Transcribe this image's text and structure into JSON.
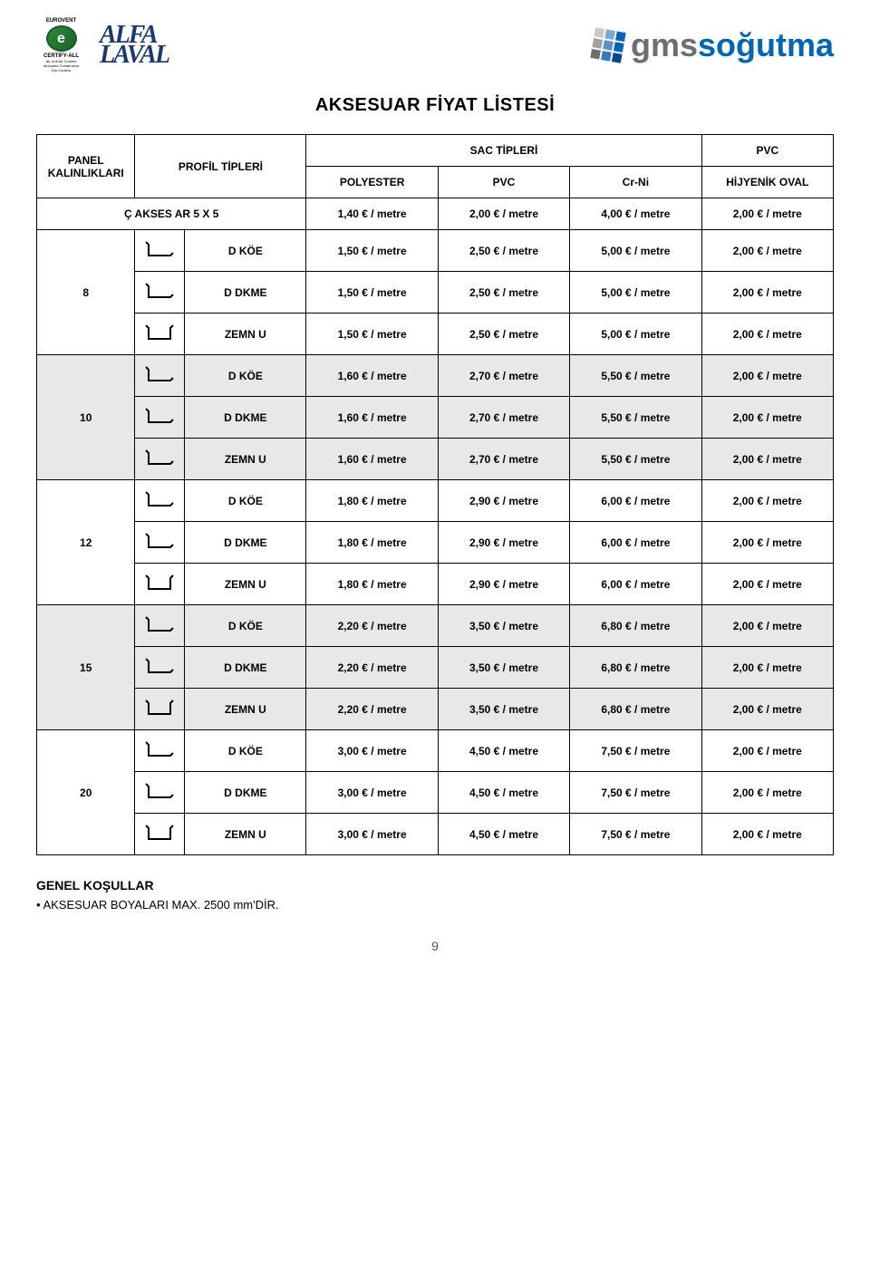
{
  "logos": {
    "eurovent_top": "EUROVENT",
    "eurovent_mid": "CERTIFY-ALL",
    "eurovent_sub": "Air Unit Air Coolers\nAircooled Condensers\nDry Coolers",
    "alfa_line1": "ALFA",
    "alfa_line2": "LAVAL",
    "gms_prefix": "gms",
    "gms_suffix": "soğutma"
  },
  "title": "AKSESUAR FİYAT LİSTESİ",
  "headers": {
    "panel": "PANEL KALINLIKLARI",
    "profil": "PROFİL TİPLERİ",
    "sac": "SAC TİPLERİ",
    "pvc_top": "PVC",
    "polyester": "POLYESTER",
    "pvc": "PVC",
    "crni": "Cr-Ni",
    "hijyenik": "HİJYENİK OVAL"
  },
  "first_row": {
    "label": "Ç AKSES AR  5 X 5",
    "c1": "1,40 € / metre",
    "c2": "2,00 € / metre",
    "c3": "4,00 € / metre",
    "c4": "2,00 € / metre"
  },
  "groups": [
    {
      "panel": "8",
      "grey": false,
      "rows": [
        {
          "name": "D KÖE",
          "icon": "L",
          "c1": "1,50 € / metre",
          "c2": "2,50 € / metre",
          "c3": "5,00 € / metre",
          "c4": "2,00 € / metre"
        },
        {
          "name": "D DKME",
          "icon": "L",
          "c1": "1,50 € / metre",
          "c2": "2,50 € / metre",
          "c3": "5,00 € / metre",
          "c4": "2,00 € / metre"
        },
        {
          "name": "ZEMN U",
          "icon": "U",
          "c1": "1,50 € / metre",
          "c2": "2,50 € / metre",
          "c3": "5,00 € / metre",
          "c4": "2,00 € / metre"
        }
      ]
    },
    {
      "panel": "10",
      "grey": true,
      "rows": [
        {
          "name": "D KÖE",
          "icon": "L",
          "c1": "1,60 € / metre",
          "c2": "2,70 € / metre",
          "c3": "5,50 € / metre",
          "c4": "2,00 € / metre"
        },
        {
          "name": "D DKME",
          "icon": "L",
          "c1": "1,60 € / metre",
          "c2": "2,70 € / metre",
          "c3": "5,50 € / metre",
          "c4": "2,00 € / metre"
        },
        {
          "name": "ZEMN U",
          "icon": "L",
          "c1": "1,60 € / metre",
          "c2": "2,70 € / metre",
          "c3": "5,50 € / metre",
          "c4": "2,00 € / metre"
        }
      ]
    },
    {
      "panel": "12",
      "grey": false,
      "rows": [
        {
          "name": "D KÖE",
          "icon": "L",
          "c1": "1,80 € / metre",
          "c2": "2,90 € / metre",
          "c3": "6,00 € / metre",
          "c4": "2,00 € / metre"
        },
        {
          "name": "D DKME",
          "icon": "L",
          "c1": "1,80 € / metre",
          "c2": "2,90 € / metre",
          "c3": "6,00 € / metre",
          "c4": "2,00 € / metre"
        },
        {
          "name": "ZEMN U",
          "icon": "U",
          "c1": "1,80 € / metre",
          "c2": "2,90 € / metre",
          "c3": "6,00 € / metre",
          "c4": "2,00 € / metre"
        }
      ]
    },
    {
      "panel": "15",
      "grey": true,
      "rows": [
        {
          "name": "D KÖE",
          "icon": "L",
          "c1": "2,20 € / metre",
          "c2": "3,50 € / metre",
          "c3": "6,80 € / metre",
          "c4": "2,00 € / metre"
        },
        {
          "name": "D DKME",
          "icon": "L",
          "c1": "2,20 € / metre",
          "c2": "3,50 € / metre",
          "c3": "6,80 € / metre",
          "c4": "2,00 € / metre"
        },
        {
          "name": "ZEMN U",
          "icon": "U",
          "c1": "2,20 € / metre",
          "c2": "3,50 € / metre",
          "c3": "6,80 € / metre",
          "c4": "2,00 € / metre"
        }
      ]
    },
    {
      "panel": "20",
      "grey": false,
      "rows": [
        {
          "name": "D KÖE",
          "icon": "L",
          "c1": "3,00 € / metre",
          "c2": "4,50 € / metre",
          "c3": "7,50 € / metre",
          "c4": "2,00 € / metre"
        },
        {
          "name": "D DKME",
          "icon": "L",
          "c1": "3,00 € / metre",
          "c2": "4,50 € / metre",
          "c3": "7,50 € / metre",
          "c4": "2,00 € / metre"
        },
        {
          "name": "ZEMN U",
          "icon": "U",
          "c1": "3,00 € / metre",
          "c2": "4,50 € / metre",
          "c3": "7,50 € / metre",
          "c4": "2,00 € / metre"
        }
      ]
    }
  ],
  "footer": {
    "title": "GENEL KOŞULLAR",
    "item1": "AKSESUAR BOYALARI MAX.  2500 mm'DİR."
  },
  "page_number": "9",
  "colors": {
    "grey_row": "#e8e8e8",
    "border": "#000000",
    "gms_grey": "#6d6e71",
    "gms_blue": "#0066b3",
    "alfa_blue": "#1a3a6e"
  },
  "icons": {
    "L_svg": "profile-L",
    "U_svg": "profile-U"
  }
}
